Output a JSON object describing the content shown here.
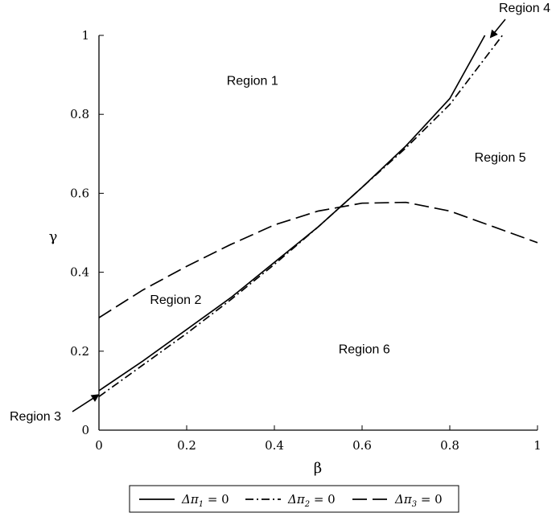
{
  "chart_data": {
    "type": "line",
    "xlabel": "β",
    "ylabel": "γ",
    "xlim": [
      0,
      1
    ],
    "ylim": [
      0,
      1
    ],
    "x_ticks": [
      "0",
      "0.2",
      "0.4",
      "0.6",
      "0.8",
      "1"
    ],
    "y_ticks": [
      "0",
      "0.2",
      "0.4",
      "0.6",
      "0.8",
      "1"
    ],
    "grid": false,
    "legend_position": "bottom",
    "series": [
      {
        "name": "Δπ1 = 0",
        "style": "solid",
        "points": [
          [
            0,
            0.1
          ],
          [
            0.1,
            0.175
          ],
          [
            0.2,
            0.255
          ],
          [
            0.3,
            0.335
          ],
          [
            0.4,
            0.425
          ],
          [
            0.5,
            0.515
          ],
          [
            0.6,
            0.615
          ],
          [
            0.7,
            0.72
          ],
          [
            0.8,
            0.84
          ],
          [
            0.88,
            1.0
          ]
        ]
      },
      {
        "name": "Δπ2 = 0",
        "style": "dashdot",
        "points": [
          [
            0,
            0.085
          ],
          [
            0.1,
            0.165
          ],
          [
            0.2,
            0.245
          ],
          [
            0.3,
            0.33
          ],
          [
            0.4,
            0.42
          ],
          [
            0.5,
            0.515
          ],
          [
            0.6,
            0.615
          ],
          [
            0.7,
            0.715
          ],
          [
            0.8,
            0.825
          ],
          [
            0.92,
            1.0
          ]
        ]
      },
      {
        "name": "Δπ3 = 0",
        "style": "dashed",
        "points": [
          [
            0,
            0.285
          ],
          [
            0.1,
            0.355
          ],
          [
            0.2,
            0.415
          ],
          [
            0.3,
            0.47
          ],
          [
            0.4,
            0.52
          ],
          [
            0.5,
            0.555
          ],
          [
            0.6,
            0.575
          ],
          [
            0.7,
            0.577
          ],
          [
            0.8,
            0.555
          ],
          [
            0.9,
            0.515
          ],
          [
            1.0,
            0.475
          ]
        ]
      }
    ],
    "annotations": [
      {
        "text": "Region 1",
        "x": 0.35,
        "y": 0.875
      },
      {
        "text": "Region 2",
        "x": 0.175,
        "y": 0.32
      },
      {
        "text": "Region 5",
        "x": 0.915,
        "y": 0.68
      },
      {
        "text": "Region 6",
        "x": 0.605,
        "y": 0.195
      }
    ],
    "callouts": [
      {
        "text": "Region 3",
        "point": [
          0.0,
          0.095
        ]
      },
      {
        "text": "Region 4",
        "point": [
          0.89,
          1.0
        ]
      }
    ],
    "legend": [
      {
        "symbol": "Δπ",
        "subscript": "1",
        "suffix": " = 0",
        "style": "solid"
      },
      {
        "symbol": "Δπ",
        "subscript": "2",
        "suffix": " = 0",
        "style": "dashdot"
      },
      {
        "symbol": "Δπ",
        "subscript": "3",
        "suffix": " = 0",
        "style": "dashed"
      }
    ]
  }
}
